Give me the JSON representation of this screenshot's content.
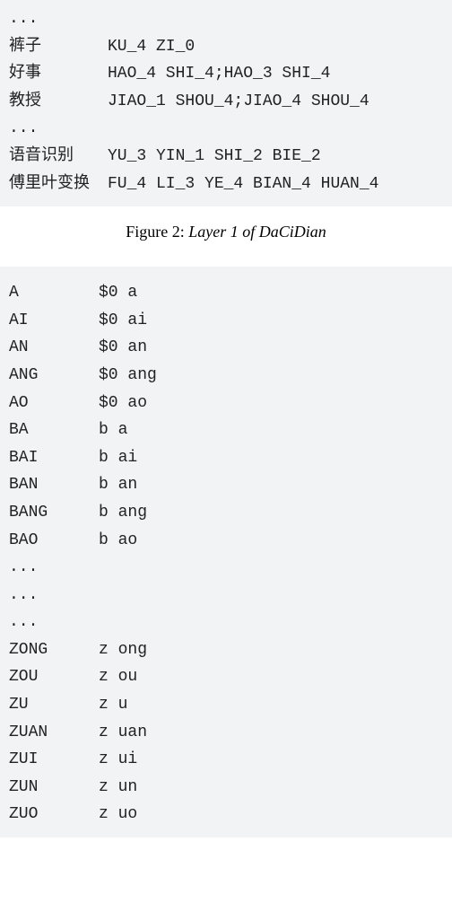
{
  "figure2": {
    "label": "Figure 2:",
    "title": "Layer 1 of DaCiDian",
    "rows": [
      {
        "k": "...",
        "v": ""
      },
      {
        "k": "裤子",
        "v": "KU_4 ZI_0"
      },
      {
        "k": "好事",
        "v": "HAO_4 SHI_4;HAO_3 SHI_4"
      },
      {
        "k": "教授",
        "v": "JIAO_1 SHOU_4;JIAO_4 SHOU_4"
      },
      {
        "k": "...",
        "v": ""
      },
      {
        "k": "语音识别",
        "v": "YU_3 YIN_1 SHI_2 BIE_2"
      },
      {
        "k": "傅里叶变换",
        "v": "FU_4 LI_3 YE_4 BIAN_4 HUAN_4"
      }
    ]
  },
  "figure3": {
    "rows": [
      {
        "k": "A",
        "v": "$0 a"
      },
      {
        "k": "AI",
        "v": "$0 ai"
      },
      {
        "k": "AN",
        "v": "$0 an"
      },
      {
        "k": "ANG",
        "v": "$0 ang"
      },
      {
        "k": "AO",
        "v": "$0 ao"
      },
      {
        "k": "BA",
        "v": "b a"
      },
      {
        "k": "BAI",
        "v": "b ai"
      },
      {
        "k": "BAN",
        "v": "b an"
      },
      {
        "k": "BANG",
        "v": "b ang"
      },
      {
        "k": "BAO",
        "v": "b ao"
      },
      {
        "k": "...",
        "v": ""
      },
      {
        "k": "...",
        "v": ""
      },
      {
        "k": "...",
        "v": ""
      },
      {
        "k": "ZONG",
        "v": "z ong"
      },
      {
        "k": "ZOU",
        "v": "z ou"
      },
      {
        "k": "ZU",
        "v": "z u"
      },
      {
        "k": "ZUAN",
        "v": "z uan"
      },
      {
        "k": "ZUI",
        "v": "z ui"
      },
      {
        "k": "ZUN",
        "v": "z un"
      },
      {
        "k": "ZUO",
        "v": "z uo"
      }
    ]
  }
}
